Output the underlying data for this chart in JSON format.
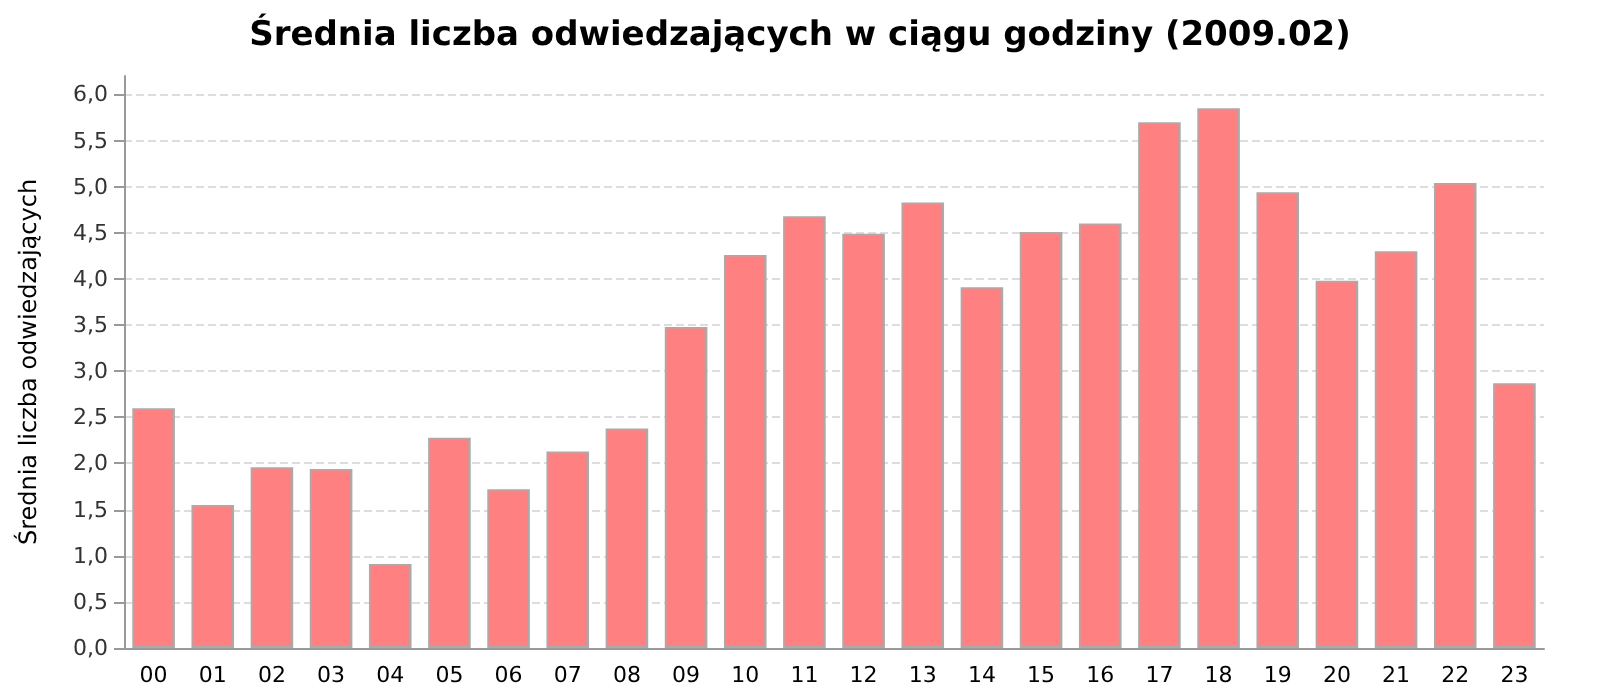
{
  "chart_data": {
    "type": "bar",
    "title": "Średnia liczba odwiedzających w ciągu godziny (2009.02)",
    "ylabel": "Średnia liczba odwiedzających",
    "categories": [
      "00",
      "01",
      "02",
      "03",
      "04",
      "05",
      "06",
      "07",
      "08",
      "09",
      "10",
      "11",
      "12",
      "13",
      "14",
      "15",
      "16",
      "17",
      "18",
      "19",
      "20",
      "21",
      "22",
      "23"
    ],
    "values": [
      2.6,
      1.55,
      1.96,
      1.94,
      0.91,
      2.28,
      1.72,
      2.13,
      2.38,
      3.48,
      4.26,
      4.68,
      4.49,
      4.83,
      3.91,
      4.51,
      4.6,
      5.7,
      5.85,
      4.94,
      3.98,
      4.3,
      5.04,
      2.87
    ],
    "color": "#ff8080",
    "ylim": [
      0,
      6.2
    ],
    "yticks": [
      {
        "value": 0,
        "label": "0,0"
      },
      {
        "value": 0.5,
        "label": "0,5"
      },
      {
        "value": 1,
        "label": "1,0"
      },
      {
        "value": 1.5,
        "label": "1,5"
      },
      {
        "value": 2,
        "label": "2,0"
      },
      {
        "value": 2.5,
        "label": "2,5"
      },
      {
        "value": 3,
        "label": "3,0"
      },
      {
        "value": 3.5,
        "label": "3,5"
      },
      {
        "value": 4,
        "label": "4,0"
      },
      {
        "value": 4.5,
        "label": "4,5"
      },
      {
        "value": 5,
        "label": "5,0"
      },
      {
        "value": 5.5,
        "label": "5,5"
      },
      {
        "value": 6,
        "label": "6,0"
      }
    ],
    "grid": "y"
  }
}
